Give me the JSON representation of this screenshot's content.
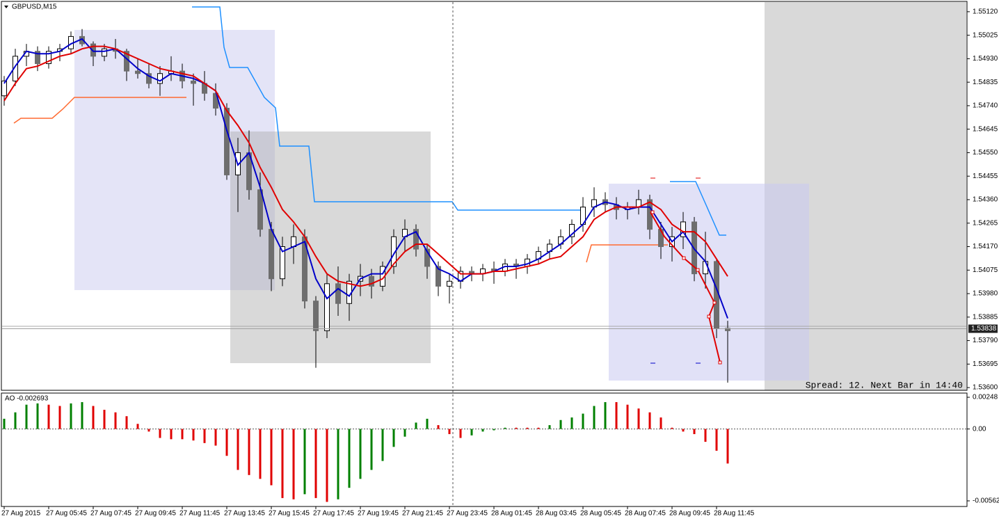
{
  "chart_data": [
    {
      "type": "candlestick",
      "title": "GBPUSD,M15",
      "annotation": "Spread: 12. Next Bar in 14:40",
      "categories": [
        "27 Aug 2015",
        null,
        null,
        null,
        "27 Aug 05:45",
        null,
        null,
        null,
        "27 Aug 07:45",
        null,
        null,
        null,
        "27 Aug 09:45",
        null,
        null,
        null,
        "27 Aug 11:45",
        null,
        null,
        null,
        "27 Aug 13:45",
        null,
        null,
        null,
        "27 Aug 15:45",
        null,
        null,
        null,
        "27 Aug 17:45",
        null,
        null,
        null,
        "27 Aug 19:45",
        null,
        null,
        null,
        "27 Aug 21:45",
        null,
        null,
        null,
        "27 Aug 23:45",
        null,
        null,
        null,
        "28 Aug 01:45",
        null,
        null,
        null,
        "28 Aug 03:45",
        null,
        null,
        null,
        "28 Aug 05:45",
        null,
        null,
        null,
        "28 Aug 07:45",
        null,
        null,
        null,
        "28 Aug 09:45",
        null,
        null,
        null,
        "28 Aug 11:45",
        null
      ],
      "open": [
        1.5478,
        1.5484,
        1.5494,
        1.5496,
        1.5491,
        1.5496,
        1.5497,
        1.5502,
        1.5499,
        1.5494,
        1.5497,
        1.5496,
        1.5488,
        1.5487,
        1.5483,
        1.5487,
        1.5488,
        1.5484,
        1.5483,
        1.5479,
        1.5473,
        1.5446,
        1.5455,
        1.544,
        1.5424,
        1.5404,
        1.5417,
        1.5421,
        1.5395,
        1.5383,
        1.5402,
        1.5394,
        1.5403,
        1.5405,
        1.5401,
        1.5409,
        1.5421,
        1.5424,
        1.5416,
        1.5409,
        1.5401,
        1.5403,
        1.5407,
        1.5406,
        1.5408,
        1.5407,
        1.541,
        1.5409,
        1.5412,
        1.5415,
        1.5418,
        1.5421,
        1.5426,
        1.5433,
        1.5436,
        1.5434,
        1.5432,
        1.5433,
        1.5436,
        1.5424,
        1.5417,
        1.5421,
        1.5427,
        1.5406,
        1.5411,
        1.5384
      ],
      "high": [
        1.5486,
        1.5497,
        1.5499,
        1.5498,
        1.5498,
        1.5499,
        1.5504,
        1.5505,
        1.55,
        1.5499,
        1.5501,
        1.5497,
        1.5493,
        1.5491,
        1.549,
        1.5494,
        1.5491,
        1.5487,
        1.5488,
        1.5483,
        1.5475,
        1.5461,
        1.5464,
        1.5447,
        1.5427,
        1.5421,
        1.5426,
        1.5424,
        1.5397,
        1.5406,
        1.5409,
        1.5406,
        1.541,
        1.5408,
        1.5411,
        1.5424,
        1.5428,
        1.5426,
        1.5418,
        1.5411,
        1.5406,
        1.5409,
        1.5409,
        1.541,
        1.5411,
        1.5412,
        1.5412,
        1.5414,
        1.5417,
        1.542,
        1.5424,
        1.5428,
        1.5437,
        1.5441,
        1.5439,
        1.5437,
        1.5435,
        1.544,
        1.5438,
        1.5427,
        1.5425,
        1.5431,
        1.5429,
        1.5423,
        1.5412,
        1.5387
      ],
      "low": [
        1.5474,
        1.5482,
        1.549,
        1.5488,
        1.5489,
        1.5492,
        1.5495,
        1.5498,
        1.549,
        1.5492,
        1.5493,
        1.5484,
        1.5485,
        1.5481,
        1.5478,
        1.5484,
        1.5481,
        1.5474,
        1.5476,
        1.547,
        1.5444,
        1.5431,
        1.5436,
        1.5421,
        1.5399,
        1.5401,
        1.541,
        1.5392,
        1.5368,
        1.538,
        1.5389,
        1.5387,
        1.5397,
        1.5396,
        1.5399,
        1.5406,
        1.5415,
        1.5413,
        1.5404,
        1.5397,
        1.5394,
        1.54,
        1.5403,
        1.5403,
        1.5402,
        1.5405,
        1.5404,
        1.5406,
        1.541,
        1.5412,
        1.5416,
        1.5418,
        1.5423,
        1.5429,
        1.5431,
        1.5428,
        1.5428,
        1.543,
        1.542,
        1.5412,
        1.5411,
        1.5416,
        1.5403,
        1.54,
        1.538,
        1.5362
      ],
      "close": [
        1.5484,
        1.5494,
        1.5496,
        1.5491,
        1.5496,
        1.5497,
        1.5502,
        1.5499,
        1.5494,
        1.5497,
        1.5496,
        1.5488,
        1.5487,
        1.5483,
        1.5487,
        1.5488,
        1.5484,
        1.5483,
        1.5479,
        1.5473,
        1.5446,
        1.5455,
        1.544,
        1.5424,
        1.5404,
        1.5417,
        1.5421,
        1.5395,
        1.5383,
        1.5402,
        1.5394,
        1.5403,
        1.5405,
        1.5401,
        1.5409,
        1.5421,
        1.5424,
        1.5416,
        1.5409,
        1.5401,
        1.5403,
        1.5407,
        1.5406,
        1.5408,
        1.5407,
        1.541,
        1.5409,
        1.5412,
        1.5415,
        1.5418,
        1.5421,
        1.5426,
        1.5433,
        1.5436,
        1.5434,
        1.5432,
        1.5433,
        1.5436,
        1.5424,
        1.5417,
        1.5421,
        1.5427,
        1.5406,
        1.5411,
        1.5384,
        1.5383
      ],
      "up_color": "#ffffff",
      "down_color": "#6e6e6e",
      "lines": [
        {
          "color": "#0000c8",
          "values": [
            1.5483,
            1.549,
            1.5496,
            1.5495,
            1.5495,
            1.5496,
            1.5499,
            1.5501,
            1.5496,
            1.5496,
            1.5497,
            1.5493,
            1.5489,
            1.5486,
            1.5484,
            1.5487,
            1.5486,
            1.5485,
            1.5483,
            1.548,
            1.5464,
            1.545,
            1.5455,
            1.5441,
            1.5424,
            1.5415,
            1.5417,
            1.5419,
            1.5404,
            1.5396,
            1.54,
            1.5397,
            1.5404,
            1.5406,
            1.5406,
            1.5414,
            1.5421,
            1.5423,
            1.5415,
            1.5408,
            1.5406,
            1.5403,
            1.5406,
            1.5406,
            1.5407,
            1.5409,
            1.5409,
            1.541,
            1.5412,
            1.5415,
            1.5418,
            1.5422,
            1.5426,
            1.5433,
            1.5435,
            1.5434,
            1.5432,
            1.5433,
            1.5433,
            1.5426,
            1.5419,
            1.5423,
            1.5416,
            1.5411,
            1.54,
            1.5388
          ]
        },
        {
          "color": "#e00000",
          "values": [
            1.5476,
            1.5483,
            1.5489,
            1.549,
            1.5492,
            1.5494,
            1.5495,
            1.5497,
            1.5498,
            1.5498,
            1.5497,
            1.5495,
            1.5493,
            1.5491,
            1.5489,
            1.5488,
            1.5487,
            1.5486,
            1.5483,
            1.548,
            1.5472,
            1.5466,
            1.5459,
            1.5449,
            1.5441,
            1.5432,
            1.5427,
            1.5421,
            1.5413,
            1.5406,
            1.5403,
            1.5402,
            1.5401,
            1.5402,
            1.5404,
            1.541,
            1.5415,
            1.5418,
            1.5418,
            1.5414,
            1.541,
            1.5406,
            1.5406,
            1.5406,
            1.5407,
            1.5407,
            1.5408,
            1.5409,
            1.541,
            1.5412,
            1.5413,
            1.5417,
            1.5421,
            1.5428,
            1.5431,
            1.5433,
            1.5433,
            1.5433,
            1.5435,
            1.5432,
            1.5426,
            1.5423,
            1.5423,
            1.5419,
            1.5412,
            1.5405
          ]
        }
      ],
      "bid": 1.53838,
      "ylim": [
        1.53589,
        1.55159
      ],
      "yticks": [
        {
          "value": 1.5512,
          "label": "1.55120"
        },
        1.55025,
        {
          "value": 1.5493,
          "label": "1.54930"
        },
        1.54835,
        {
          "value": 1.5474,
          "label": "1.54740"
        },
        1.54645,
        {
          "value": 1.5455,
          "label": "1.54550"
        },
        1.54455,
        {
          "value": 1.5436,
          "label": "1.54360"
        },
        1.54265,
        {
          "value": 1.5417,
          "label": "1.54170"
        },
        1.54075,
        {
          "value": 1.5398,
          "label": "1.53980"
        },
        1.53885,
        {
          "value": 1.5379,
          "label": "1.53790"
        },
        1.53695,
        {
          "value": 1.536,
          "label": "1.53600"
        }
      ],
      "grid": false
    },
    {
      "type": "bar",
      "title": "AO -0.002693",
      "values": [
        0.0008,
        0.0013,
        0.0019,
        0.002,
        0.0019,
        0.0018,
        0.002,
        0.0021,
        0.0018,
        0.0015,
        0.0013,
        0.001,
        0.0004,
        -0.0002,
        -0.0007,
        -0.0008,
        -0.0008,
        -0.0009,
        -0.0011,
        -0.0013,
        -0.0021,
        -0.0032,
        -0.0036,
        -0.0039,
        -0.0044,
        -0.0054,
        -0.0055,
        -0.0051,
        -0.0054,
        -0.0057,
        -0.0055,
        -0.0046,
        -0.0039,
        -0.0032,
        -0.0025,
        -0.0014,
        -0.0006,
        0.0005,
        0.0008,
        0.0003,
        -0.0004,
        -0.0007,
        -0.0005,
        -0.0002,
        -0.0001,
        0.0001,
        0.0001,
        0.0001,
        0.0001,
        0.0003,
        0.0007,
        0.0009,
        0.0012,
        0.0018,
        0.0021,
        0.0021,
        0.0019,
        0.0016,
        0.0013,
        0.0009,
        0.0001,
        -0.0002,
        -0.0004,
        -0.001,
        -0.0017,
        -0.0027
      ],
      "up_color": "#008000",
      "down_color": "#e00000",
      "ylim": [
        -0.006059,
        0.002808
      ],
      "yticks": [
        0.00248,
        {
          "value": 0,
          "label": "0.00"
        },
        -0.005621
      ],
      "grid": false
    }
  ]
}
